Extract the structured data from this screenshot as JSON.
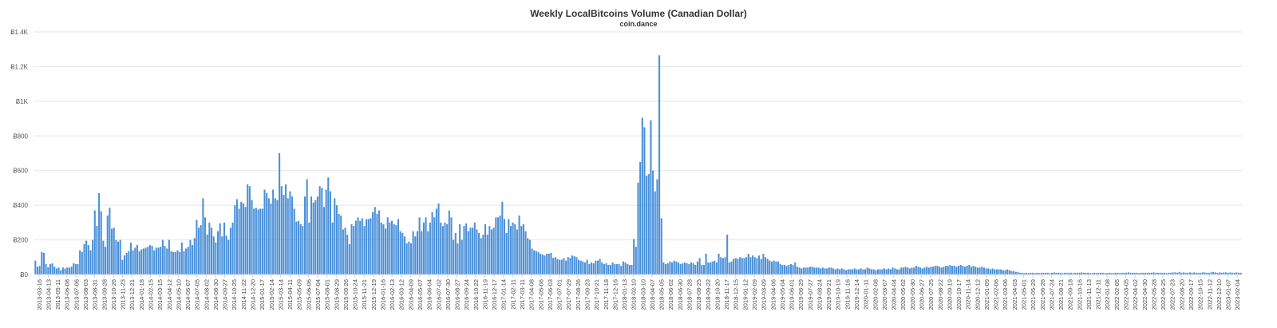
{
  "chart_data": {
    "type": "bar",
    "title": "Weekly LocalBitcoins Volume (Canadian Dollar)",
    "subtitle": "coin.dance",
    "xlabel": "",
    "ylabel": "",
    "ylim": [
      0,
      1400
    ],
    "y_ticks": [
      "Ƀ0",
      "Ƀ200",
      "Ƀ400",
      "Ƀ600",
      "Ƀ800",
      "Ƀ1K",
      "Ƀ1.2K",
      "Ƀ1.4K"
    ],
    "y_tick_values": [
      0,
      200,
      400,
      600,
      800,
      1000,
      1200,
      1400
    ],
    "grid": true,
    "bar_color": "#4a90d9",
    "x_ticks": [
      "2013-03-16",
      "2013-04-13",
      "2013-05-11",
      "2013-06-08",
      "2013-07-06",
      "2013-08-03",
      "2013-08-31",
      "2013-09-28",
      "2013-10-26",
      "2013-11-23",
      "2013-12-21",
      "2014-01-18",
      "2014-02-15",
      "2014-03-15",
      "2014-04-12",
      "2014-05-10",
      "2014-06-07",
      "2014-07-05",
      "2014-08-02",
      "2014-08-30",
      "2014-09-27",
      "2014-10-25",
      "2014-11-22",
      "2014-12-20",
      "2015-01-17",
      "2015-02-14",
      "2015-03-14",
      "2015-04-11",
      "2015-05-09",
      "2015-06-06",
      "2015-07-04",
      "2015-08-01",
      "2015-08-29",
      "2015-09-26",
      "2015-10-24",
      "2015-11-21",
      "2015-12-19",
      "2016-01-16",
      "2016-02-13",
      "2016-03-12",
      "2016-04-09",
      "2016-05-07",
      "2016-06-04",
      "2016-07-02",
      "2016-07-30",
      "2016-08-27",
      "2016-09-24",
      "2016-10-22",
      "2016-11-19",
      "2016-12-17",
      "2017-01-14",
      "2017-02-11",
      "2017-03-11",
      "2017-04-08",
      "2017-05-06",
      "2017-06-03",
      "2017-07-01",
      "2017-07-29",
      "2017-08-26",
      "2017-09-23",
      "2017-10-21",
      "2017-11-18",
      "2017-12-16",
      "2018-01-13",
      "2018-02-10",
      "2018-03-10",
      "2018-04-07",
      "2018-05-05",
      "2018-06-02",
      "2018-06-30",
      "2018-07-28",
      "2018-08-25",
      "2018-09-22",
      "2018-10-20",
      "2018-11-17",
      "2018-12-15",
      "2019-01-12",
      "2019-02-09",
      "2019-03-09",
      "2019-04-06",
      "2019-05-04",
      "2019-06-01",
      "2019-06-29",
      "2019-07-27",
      "2019-08-24",
      "2019-09-21",
      "2019-10-19",
      "2019-11-16",
      "2019-12-14",
      "2020-01-11",
      "2020-02-08",
      "2020-03-07",
      "2020-04-04",
      "2020-05-02",
      "2020-05-30",
      "2020-06-27",
      "2020-07-25",
      "2020-08-22",
      "2020-09-19",
      "2020-10-17",
      "2020-11-14",
      "2020-12-12",
      "2021-01-09",
      "2021-02-06",
      "2021-03-06",
      "2021-04-03",
      "2021-05-01",
      "2021-05-29",
      "2021-06-26",
      "2021-07-24",
      "2021-08-21",
      "2021-09-18",
      "2021-10-16",
      "2021-11-13",
      "2021-12-11",
      "2022-01-08",
      "2022-02-05",
      "2022-03-05",
      "2022-04-02",
      "2022-04-30",
      "2022-05-28",
      "2022-06-25",
      "2022-07-23",
      "2022-08-20",
      "2022-09-17",
      "2022-10-15",
      "2022-11-12",
      "2022-12-10",
      "2023-01-07",
      "2023-02-04"
    ],
    "values": [
      80,
      45,
      50,
      130,
      125,
      60,
      42,
      60,
      65,
      45,
      35,
      40,
      25,
      40,
      35,
      40,
      40,
      45,
      65,
      60,
      60,
      140,
      130,
      175,
      195,
      170,
      140,
      200,
      370,
      280,
      470,
      365,
      195,
      160,
      340,
      385,
      265,
      270,
      200,
      190,
      200,
      85,
      110,
      125,
      135,
      185,
      140,
      155,
      170,
      135,
      145,
      150,
      155,
      160,
      170,
      165,
      140,
      155,
      155,
      160,
      200,
      165,
      150,
      200,
      135,
      130,
      130,
      140,
      130,
      185,
      135,
      150,
      160,
      200,
      170,
      210,
      315,
      270,
      285,
      440,
      330,
      230,
      300,
      270,
      220,
      185,
      250,
      295,
      220,
      300,
      225,
      200,
      270,
      300,
      400,
      435,
      380,
      420,
      410,
      390,
      520,
      510,
      430,
      380,
      385,
      375,
      380,
      380,
      490,
      470,
      440,
      410,
      490,
      440,
      430,
      700,
      510,
      460,
      520,
      440,
      480,
      450,
      380,
      305,
      310,
      290,
      280,
      450,
      550,
      300,
      450,
      415,
      430,
      450,
      510,
      500,
      390,
      490,
      560,
      480,
      300,
      440,
      400,
      350,
      340,
      260,
      270,
      230,
      175,
      290,
      280,
      310,
      330,
      310,
      325,
      280,
      320,
      320,
      325,
      360,
      390,
      350,
      370,
      300,
      290,
      265,
      330,
      300,
      310,
      290,
      285,
      320,
      250,
      240,
      220,
      180,
      190,
      180,
      250,
      220,
      250,
      330,
      250,
      300,
      330,
      250,
      300,
      360,
      330,
      380,
      410,
      300,
      280,
      300,
      290,
      370,
      330,
      200,
      240,
      180,
      290,
      200,
      280,
      295,
      250,
      270,
      270,
      300,
      260,
      240,
      210,
      230,
      290,
      230,
      280,
      260,
      270,
      330,
      330,
      340,
      420,
      320,
      240,
      320,
      280,
      300,
      290,
      260,
      340,
      280,
      290,
      250,
      210,
      200,
      150,
      140,
      135,
      130,
      120,
      115,
      110,
      120,
      120,
      125,
      95,
      100,
      90,
      85,
      85,
      95,
      80,
      100,
      95,
      110,
      105,
      100,
      85,
      80,
      75,
      70,
      85,
      60,
      70,
      65,
      80,
      80,
      90,
      70,
      60,
      65,
      55,
      55,
      70,
      60,
      60,
      60,
      50,
      75,
      70,
      60,
      55,
      55,
      205,
      160,
      530,
      650,
      905,
      850,
      570,
      580,
      890,
      600,
      480,
      550,
      1265,
      325,
      70,
      60,
      65,
      75,
      70,
      80,
      75,
      70,
      60,
      65,
      70,
      65,
      60,
      70,
      65,
      55,
      75,
      95,
      55,
      55,
      120,
      70,
      70,
      75,
      80,
      70,
      120,
      100,
      95,
      100,
      230,
      70,
      75,
      90,
      95,
      90,
      100,
      95,
      95,
      100,
      120,
      100,
      110,
      100,
      95,
      110,
      90,
      120,
      100,
      90,
      80,
      75,
      80,
      75,
      75,
      60,
      55,
      55,
      50,
      55,
      60,
      55,
      70,
      45,
      40,
      35,
      40,
      40,
      40,
      45,
      45,
      40,
      40,
      40,
      35,
      40,
      35,
      35,
      40,
      40,
      35,
      30,
      35,
      30,
      35,
      30,
      25,
      30,
      30,
      30,
      35,
      30,
      30,
      35,
      30,
      30,
      40,
      35,
      30,
      30,
      25,
      30,
      30,
      30,
      35,
      30,
      35,
      30,
      40,
      35,
      30,
      30,
      40,
      40,
      45,
      40,
      35,
      40,
      40,
      50,
      45,
      40,
      35,
      40,
      45,
      40,
      45,
      45,
      50,
      50,
      45,
      40,
      45,
      50,
      50,
      55,
      50,
      50,
      45,
      50,
      55,
      50,
      45,
      50,
      55,
      45,
      50,
      45,
      40,
      40,
      45,
      40,
      35,
      35,
      30,
      35,
      30,
      30,
      30,
      30,
      25,
      25,
      30,
      25,
      20,
      20,
      15,
      15,
      10,
      10,
      8,
      10,
      8,
      10,
      10,
      8,
      10,
      8,
      10,
      10,
      10,
      10,
      8,
      10,
      12,
      10,
      10,
      10,
      8,
      10,
      10,
      10,
      10,
      8,
      10,
      10,
      10,
      12,
      10,
      10,
      10,
      8,
      8,
      10,
      8,
      10,
      10,
      10,
      8,
      8,
      10,
      8,
      8,
      10,
      10,
      8,
      10,
      10,
      10,
      12,
      10,
      10,
      10,
      10,
      8,
      10,
      10,
      10,
      10,
      10,
      10,
      12,
      10,
      10,
      10,
      10,
      10,
      8,
      10,
      10,
      12,
      12,
      10,
      15,
      10,
      12,
      10,
      10,
      12,
      10,
      12,
      10,
      10,
      10,
      12,
      12,
      10,
      10,
      12,
      15,
      12,
      10,
      12,
      10,
      12,
      12,
      10,
      12,
      10,
      10,
      12,
      10,
      10
    ]
  }
}
